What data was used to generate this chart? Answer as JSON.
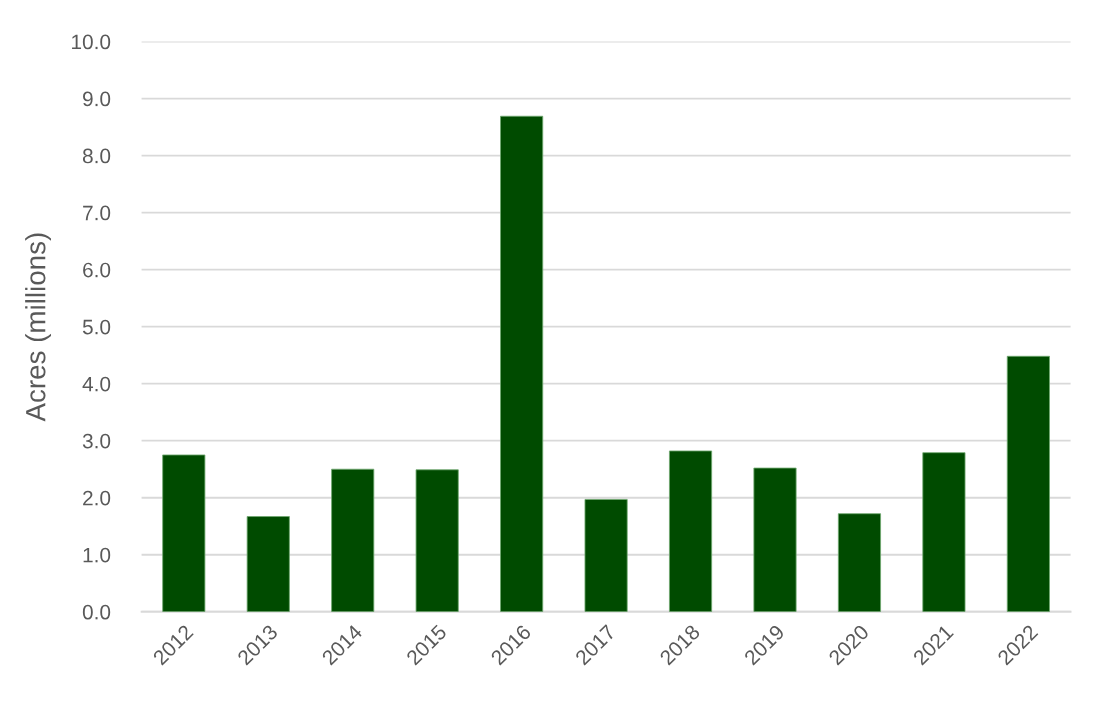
{
  "chart_data": {
    "type": "bar",
    "ylabel": "Acres (millions)",
    "categories": [
      "2012",
      "2013",
      "2014",
      "2015",
      "2016",
      "2017",
      "2018",
      "2019",
      "2020",
      "2021",
      "2022"
    ],
    "values": [
      2.75,
      1.67,
      2.5,
      2.49,
      8.69,
      1.97,
      2.82,
      2.52,
      1.72,
      2.79,
      4.48
    ],
    "color": "#004b00",
    "ylim": [
      0,
      10
    ],
    "yticks": [
      {
        "value": 0,
        "label": "0.0"
      },
      {
        "value": 1,
        "label": "1.0"
      },
      {
        "value": 2,
        "label": "2.0"
      },
      {
        "value": 3,
        "label": "3.0"
      },
      {
        "value": 4,
        "label": "4.0"
      },
      {
        "value": 5,
        "label": "5.0"
      },
      {
        "value": 6,
        "label": "6.0"
      },
      {
        "value": 7,
        "label": "7.0"
      },
      {
        "value": 8,
        "label": "8.0"
      },
      {
        "value": 9,
        "label": "9.0"
      },
      {
        "value": 10,
        "label": "10.0"
      }
    ],
    "grid": "y"
  }
}
